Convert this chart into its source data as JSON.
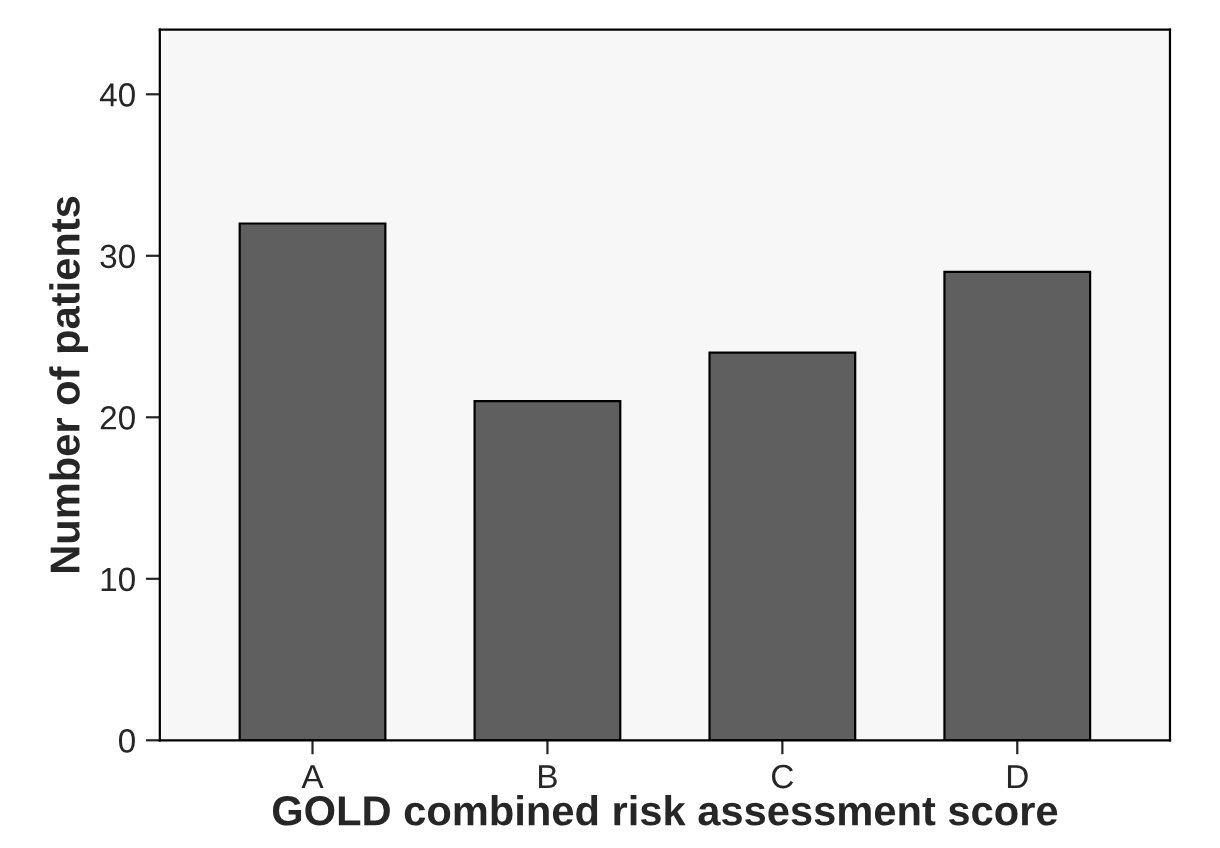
{
  "chart_data": {
    "type": "bar",
    "xlabel": "GOLD combined risk assessment score",
    "ylabel": "Number of patients",
    "categories": [
      "A",
      "B",
      "C",
      "D"
    ],
    "values": [
      32,
      21,
      24,
      29
    ],
    "color": "#5f5f5f",
    "ylim": [
      0,
      44
    ],
    "yticks": [
      0,
      10,
      20,
      30,
      40
    ],
    "grid": false
  }
}
